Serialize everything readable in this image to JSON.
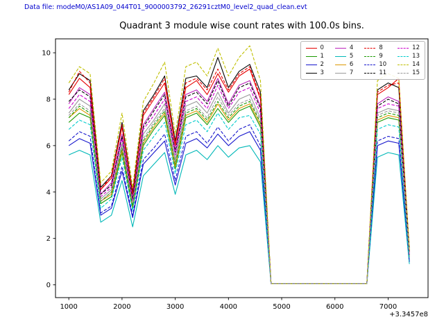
{
  "header": {
    "datafile_label": "Data file: modeM0/AS1A09_044T01_9000003792_26291cztM0_level2_quad_clean.evt",
    "datafile_color": "#0000cd"
  },
  "chart_data": {
    "type": "line",
    "title": "Quadrant 3 module wise count rates with 100.0s bins.",
    "xlabel": "",
    "ylabel": "",
    "x_offset_label": "+3.3457e8",
    "xlim": [
      750,
      7750
    ],
    "ylim": [
      -0.55,
      10.6
    ],
    "x_ticks": [
      1000,
      2000,
      3000,
      4000,
      5000,
      6000,
      7000
    ],
    "y_ticks": [
      0,
      2,
      4,
      6,
      8,
      10
    ],
    "grid": false,
    "legend": {
      "position": "upper right",
      "columns": 4,
      "rows": 4
    },
    "x": [
      1000,
      1200,
      1400,
      1600,
      1800,
      2000,
      2200,
      2400,
      2600,
      2800,
      3000,
      3200,
      3400,
      3600,
      3800,
      4000,
      4200,
      4400,
      4600,
      4800,
      5000,
      5200,
      5400,
      5600,
      5800,
      6000,
      6200,
      6400,
      6600,
      6800,
      7000,
      7200,
      7400
    ],
    "series": [
      {
        "name": "0",
        "color": "#e60000",
        "dash": false,
        "values": [
          8.2,
          8.9,
          8.5,
          4.1,
          4.6,
          6.8,
          3.9,
          7.3,
          8.0,
          8.7,
          6.0,
          8.5,
          8.8,
          8.2,
          9.1,
          8.3,
          9.0,
          9.3,
          8.0,
          0.05,
          0.05,
          0.05,
          0.05,
          0.05,
          0.05,
          0.05,
          0.05,
          0.05,
          0.05,
          8.2,
          8.5,
          8.9,
          1.4
        ]
      },
      {
        "name": "1",
        "color": "#1a9900",
        "dash": false,
        "values": [
          7.0,
          7.4,
          7.2,
          3.5,
          3.8,
          5.7,
          3.3,
          6.0,
          6.7,
          7.3,
          5.0,
          7.2,
          7.4,
          6.9,
          7.6,
          7.0,
          7.5,
          7.7,
          6.8,
          0.05,
          0.05,
          0.05,
          0.05,
          0.05,
          0.05,
          0.05,
          0.05,
          0.05,
          0.05,
          7.0,
          7.2,
          7.1,
          1.2
        ]
      },
      {
        "name": "2",
        "color": "#1414cc",
        "dash": false,
        "values": [
          6.0,
          6.3,
          6.1,
          3.0,
          3.3,
          4.9,
          2.9,
          5.2,
          5.7,
          6.2,
          4.3,
          6.1,
          6.3,
          5.9,
          6.5,
          6.0,
          6.4,
          6.6,
          5.8,
          0.05,
          0.05,
          0.05,
          0.05,
          0.05,
          0.05,
          0.05,
          0.05,
          0.05,
          0.05,
          6.0,
          6.2,
          6.1,
          1.0
        ]
      },
      {
        "name": "3",
        "color": "#000000",
        "dash": false,
        "values": [
          8.4,
          9.1,
          8.8,
          4.2,
          4.7,
          7.0,
          4.0,
          7.5,
          8.2,
          9.0,
          6.2,
          8.9,
          9.0,
          8.5,
          9.8,
          8.5,
          9.2,
          9.5,
          8.3,
          0.05,
          0.05,
          0.05,
          0.05,
          0.05,
          0.05,
          0.05,
          0.05,
          0.05,
          0.05,
          8.4,
          8.7,
          8.5,
          1.5
        ]
      },
      {
        "name": "4",
        "color": "#bb22bb",
        "dash": false,
        "values": [
          7.8,
          8.5,
          8.2,
          3.9,
          4.4,
          6.5,
          3.7,
          6.9,
          7.6,
          8.3,
          5.8,
          8.2,
          8.4,
          7.9,
          8.9,
          7.8,
          8.6,
          8.8,
          7.7,
          0.05,
          0.05,
          0.05,
          0.05,
          0.05,
          0.05,
          0.05,
          0.05,
          0.05,
          0.05,
          7.8,
          8.1,
          7.9,
          1.3
        ]
      },
      {
        "name": "5",
        "color": "#00b8b8",
        "dash": false,
        "values": [
          5.6,
          5.8,
          5.6,
          2.7,
          3.0,
          4.5,
          2.5,
          4.7,
          5.2,
          5.7,
          3.9,
          5.6,
          5.8,
          5.4,
          6.0,
          5.5,
          5.9,
          6.0,
          5.3,
          0.05,
          0.05,
          0.05,
          0.05,
          0.05,
          0.05,
          0.05,
          0.05,
          0.05,
          0.05,
          5.5,
          5.7,
          5.6,
          0.9
        ]
      },
      {
        "name": "6",
        "color": "#dd9900",
        "dash": false,
        "values": [
          7.2,
          7.6,
          7.3,
          3.6,
          3.9,
          5.8,
          3.4,
          6.1,
          6.8,
          7.4,
          5.1,
          7.3,
          7.5,
          7.0,
          7.8,
          7.1,
          7.6,
          7.8,
          6.9,
          0.05,
          0.05,
          0.05,
          0.05,
          0.05,
          0.05,
          0.05,
          0.05,
          0.05,
          0.05,
          7.1,
          7.3,
          7.2,
          1.2
        ]
      },
      {
        "name": "7",
        "color": "#999999",
        "dash": false,
        "values": [
          7.4,
          8.0,
          7.7,
          3.7,
          4.1,
          6.1,
          3.5,
          6.5,
          7.1,
          7.8,
          5.4,
          7.7,
          7.9,
          7.4,
          8.3,
          7.4,
          8.0,
          8.2,
          7.2,
          0.05,
          0.05,
          0.05,
          0.05,
          0.05,
          0.05,
          0.05,
          0.05,
          0.05,
          0.05,
          7.4,
          7.6,
          7.5,
          1.2
        ]
      },
      {
        "name": "8",
        "color": "#e60000",
        "dash": true,
        "values": [
          8.3,
          9.2,
          8.7,
          4.1,
          4.7,
          6.9,
          4.0,
          7.4,
          8.1,
          8.9,
          6.1,
          8.7,
          8.9,
          8.4,
          9.3,
          8.4,
          9.1,
          9.4,
          8.1,
          0.05,
          0.05,
          0.05,
          0.05,
          0.05,
          0.05,
          0.05,
          0.05,
          0.05,
          0.05,
          8.3,
          8.6,
          8.7,
          1.4
        ]
      },
      {
        "name": "9",
        "color": "#1a9900",
        "dash": true,
        "values": [
          7.2,
          7.7,
          7.4,
          3.6,
          4.0,
          5.9,
          3.4,
          6.2,
          6.9,
          7.5,
          5.2,
          7.4,
          7.6,
          7.1,
          7.9,
          7.2,
          7.7,
          7.9,
          7.0,
          0.05,
          0.05,
          0.05,
          0.05,
          0.05,
          0.05,
          0.05,
          0.05,
          0.05,
          0.05,
          7.2,
          7.4,
          7.3,
          1.2
        ]
      },
      {
        "name": "10",
        "color": "#1414cc",
        "dash": true,
        "values": [
          6.2,
          6.6,
          6.4,
          3.1,
          3.4,
          5.1,
          3.0,
          5.4,
          5.9,
          6.5,
          4.5,
          6.4,
          6.6,
          6.1,
          6.8,
          6.2,
          6.7,
          6.9,
          6.0,
          0.05,
          0.05,
          0.05,
          0.05,
          0.05,
          0.05,
          0.05,
          0.05,
          0.05,
          0.05,
          6.2,
          6.4,
          6.3,
          1.0
        ]
      },
      {
        "name": "11",
        "color": "#000000",
        "dash": true,
        "values": [
          7.9,
          8.4,
          8.1,
          3.9,
          4.3,
          6.4,
          3.7,
          6.8,
          7.5,
          8.2,
          5.7,
          8.1,
          8.3,
          7.8,
          8.8,
          7.7,
          8.5,
          8.7,
          7.6,
          0.05,
          0.05,
          0.05,
          0.05,
          0.05,
          0.05,
          0.05,
          0.05,
          0.05,
          0.05,
          7.7,
          8.0,
          7.8,
          1.3
        ]
      },
      {
        "name": "12",
        "color": "#cc00cc",
        "dash": true,
        "values": [
          7.6,
          8.2,
          7.9,
          3.8,
          4.2,
          6.3,
          3.6,
          6.7,
          7.3,
          8.0,
          5.6,
          7.9,
          8.1,
          7.6,
          8.6,
          7.6,
          8.3,
          8.5,
          7.4,
          0.05,
          0.05,
          0.05,
          0.05,
          0.05,
          0.05,
          0.05,
          0.05,
          0.05,
          0.05,
          7.6,
          7.8,
          7.7,
          1.3
        ]
      },
      {
        "name": "13",
        "color": "#00cccc",
        "dash": true,
        "values": [
          6.7,
          7.1,
          6.9,
          3.3,
          3.7,
          5.5,
          3.2,
          5.8,
          6.4,
          7.0,
          4.8,
          6.9,
          7.1,
          6.6,
          7.4,
          6.7,
          7.2,
          7.3,
          6.5,
          0.05,
          0.05,
          0.05,
          0.05,
          0.05,
          0.05,
          0.05,
          0.05,
          0.05,
          0.05,
          6.7,
          6.9,
          6.8,
          1.1
        ]
      },
      {
        "name": "14",
        "color": "#bfbf00",
        "dash": true,
        "values": [
          8.7,
          9.4,
          9.1,
          4.4,
          4.9,
          7.4,
          4.2,
          7.9,
          8.7,
          9.6,
          6.5,
          9.4,
          9.6,
          9.0,
          10.2,
          9.0,
          9.8,
          10.3,
          8.8,
          0.05,
          0.05,
          0.05,
          0.05,
          0.05,
          0.05,
          0.05,
          0.05,
          0.05,
          0.05,
          8.8,
          9.1,
          8.9,
          1.5
        ]
      },
      {
        "name": "15",
        "color": "#999999",
        "dash": true,
        "values": [
          7.3,
          7.8,
          7.5,
          3.6,
          4.0,
          6.0,
          3.5,
          6.3,
          7.0,
          7.6,
          5.3,
          7.5,
          7.7,
          7.2,
          8.1,
          7.3,
          7.8,
          8.0,
          7.1,
          0.05,
          0.05,
          0.05,
          0.05,
          0.05,
          0.05,
          0.05,
          0.05,
          0.05,
          0.05,
          7.3,
          7.5,
          7.4,
          1.2
        ]
      }
    ]
  }
}
